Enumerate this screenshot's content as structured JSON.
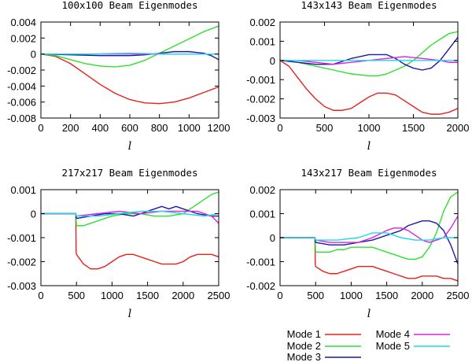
{
  "colors": {
    "mode1": "#e8201c",
    "mode2": "#2ee02e",
    "mode3": "#1a1aa8",
    "mode4": "#e020e0",
    "mode5": "#20d8e8"
  },
  "legend": [
    {
      "label": "Mode 1",
      "color": "#e8201c"
    },
    {
      "label": "Mode 2",
      "color": "#2ee02e"
    },
    {
      "label": "Mode 3",
      "color": "#1a1aa8"
    },
    {
      "label": "Mode 4",
      "color": "#e020e0"
    },
    {
      "label": "Mode 5",
      "color": "#20d8e8"
    }
  ],
  "chart_data": [
    {
      "type": "line",
      "title": "100x100 Beam Eigenmodes",
      "xlabel": "l",
      "ylabel": "",
      "xlim": [
        0,
        1200
      ],
      "ylim": [
        -0.008,
        0.004
      ],
      "xticks": [
        0,
        200,
        400,
        600,
        800,
        1000,
        1200
      ],
      "xticklabels": [
        "0",
        "200",
        "400",
        "600",
        "800",
        "1000",
        "1200"
      ],
      "yticks": [
        -0.008,
        -0.006,
        -0.004,
        -0.002,
        0,
        0.002,
        0.004
      ],
      "yticklabels": [
        "-0.008",
        "-0.006",
        "-0.004",
        "-0.002",
        "0",
        "0.002",
        "0.004"
      ],
      "series": [
        {
          "name": "Mode 1",
          "color": "#e8201c",
          "x": [
            0,
            100,
            200,
            300,
            400,
            500,
            600,
            700,
            800,
            900,
            1000,
            1100,
            1200
          ],
          "y": [
            0,
            -0.0003,
            -0.0012,
            -0.0025,
            -0.0038,
            -0.0049,
            -0.0057,
            -0.0061,
            -0.0062,
            -0.006,
            -0.0055,
            -0.0048,
            -0.0041
          ]
        },
        {
          "name": "Mode 2",
          "color": "#2ee02e",
          "x": [
            0,
            100,
            200,
            300,
            400,
            500,
            600,
            700,
            800,
            900,
            1000,
            1100,
            1200
          ],
          "y": [
            0,
            -0.0002,
            -0.0007,
            -0.0012,
            -0.0015,
            -0.0016,
            -0.0014,
            -0.0008,
            0.0001,
            0.001,
            0.0019,
            0.0028,
            0.0035
          ]
        },
        {
          "name": "Mode 3",
          "color": "#1a1aa8",
          "x": [
            0,
            200,
            400,
            600,
            700,
            800,
            900,
            1000,
            1100,
            1150,
            1200
          ],
          "y": [
            0,
            -0.0001,
            -0.0002,
            -0.0002,
            -0.0001,
            0.0001,
            0.0003,
            0.0003,
            0.0001,
            -0.0002,
            -0.0007
          ]
        },
        {
          "name": "Mode 4",
          "color": "#e020e0",
          "x": [
            0,
            300,
            600,
            900,
            1200
          ],
          "y": [
            0,
            0,
            0,
            0,
            0
          ]
        },
        {
          "name": "Mode 5",
          "color": "#20d8e8",
          "x": [
            0,
            300,
            600,
            900,
            1200
          ],
          "y": [
            0,
            0,
            0.0001,
            0,
            0
          ]
        }
      ]
    },
    {
      "type": "line",
      "title": "143x143 Beam Eigenmodes",
      "xlabel": "l",
      "ylabel": "",
      "xlim": [
        0,
        2000
      ],
      "ylim": [
        -0.003,
        0.002
      ],
      "xticks": [
        0,
        500,
        1000,
        1500,
        2000
      ],
      "xticklabels": [
        "0",
        "500",
        "1000",
        "1500",
        "2000"
      ],
      "yticks": [
        -0.003,
        -0.002,
        -0.001,
        0,
        0.001,
        0.002
      ],
      "yticklabels": [
        "-0.003",
        "-0.002",
        "-0.001",
        "0",
        "0.001",
        "0.002"
      ],
      "series": [
        {
          "name": "Mode 1",
          "color": "#e8201c",
          "x": [
            0,
            100,
            200,
            300,
            400,
            500,
            600,
            700,
            800,
            900,
            1000,
            1100,
            1200,
            1300,
            1400,
            1500,
            1600,
            1700,
            1800,
            1900,
            2000
          ],
          "y": [
            0,
            -0.0003,
            -0.0009,
            -0.0015,
            -0.002,
            -0.0024,
            -0.0026,
            -0.0026,
            -0.0025,
            -0.0022,
            -0.0019,
            -0.0017,
            -0.0017,
            -0.0018,
            -0.0021,
            -0.0024,
            -0.0027,
            -0.0028,
            -0.0028,
            -0.0027,
            -0.0025
          ]
        },
        {
          "name": "Mode 2",
          "color": "#2ee02e",
          "x": [
            0,
            200,
            400,
            600,
            800,
            1000,
            1100,
            1200,
            1300,
            1400,
            1500,
            1600,
            1700,
            1800,
            1900,
            2000
          ],
          "y": [
            0,
            -0.0001,
            -0.0003,
            -0.0005,
            -0.0007,
            -0.0008,
            -0.0008,
            -0.0007,
            -0.0005,
            -0.0003,
            0,
            0.0004,
            0.0008,
            0.0011,
            0.0014,
            0.0015
          ]
        },
        {
          "name": "Mode 3",
          "color": "#1a1aa8",
          "x": [
            0,
            200,
            400,
            600,
            800,
            900,
            1000,
            1100,
            1200,
            1300,
            1400,
            1500,
            1600,
            1700,
            1800,
            1900,
            2000
          ],
          "y": [
            0,
            -0.0001,
            -0.0002,
            -0.0002,
            0.0001,
            0.0002,
            0.0003,
            0.0003,
            0.0003,
            0.0001,
            -0.0002,
            -0.0004,
            -0.0005,
            -0.0004,
            0,
            0.0006,
            0.0012
          ]
        },
        {
          "name": "Mode 4",
          "color": "#e020e0",
          "x": [
            0,
            200,
            400,
            600,
            800,
            1000,
            1200,
            1400,
            1600,
            1800,
            1900,
            2000
          ],
          "y": [
            0,
            0,
            -0.0001,
            -0.0002,
            -0.0001,
            0,
            0.0001,
            0.0002,
            0.0001,
            0,
            -0.0001,
            -0.0001
          ]
        },
        {
          "name": "Mode 5",
          "color": "#20d8e8",
          "x": [
            0,
            400,
            800,
            1200,
            1600,
            2000
          ],
          "y": [
            0,
            0,
            0,
            0,
            0,
            0
          ]
        }
      ]
    },
    {
      "type": "line",
      "title": "217x217 Beam Eigenmodes",
      "xlabel": "l",
      "ylabel": "",
      "xlim": [
        0,
        2500
      ],
      "ylim": [
        -0.003,
        0.001
      ],
      "xticks": [
        0,
        500,
        1000,
        1500,
        2000,
        2500
      ],
      "xticklabels": [
        "0",
        "500",
        "1000",
        "1500",
        "2000",
        "2500"
      ],
      "yticks": [
        -0.003,
        -0.002,
        -0.001,
        0,
        0.001
      ],
      "yticklabels": [
        "-0.003",
        "-0.002",
        "-0.001",
        "0",
        "0.001"
      ],
      "series": [
        {
          "name": "Mode 1",
          "color": "#e8201c",
          "x": [
            0,
            490,
            495,
            500,
            550,
            600,
            700,
            800,
            900,
            1000,
            1100,
            1200,
            1300,
            1400,
            1500,
            1600,
            1700,
            1800,
            1900,
            2000,
            2100,
            2200,
            2300,
            2400,
            2500
          ],
          "y": [
            0,
            0,
            -0.0016,
            -0.0017,
            -0.0019,
            -0.0021,
            -0.0023,
            -0.0023,
            -0.0022,
            -0.002,
            -0.0018,
            -0.0017,
            -0.0017,
            -0.0018,
            -0.0019,
            -0.002,
            -0.0021,
            -0.0021,
            -0.0021,
            -0.002,
            -0.0018,
            -0.0017,
            -0.0017,
            -0.0017,
            -0.0018
          ]
        },
        {
          "name": "Mode 2",
          "color": "#2ee02e",
          "x": [
            0,
            490,
            500,
            600,
            700,
            800,
            900,
            1000,
            1200,
            1400,
            1600,
            1800,
            2000,
            2100,
            2200,
            2300,
            2400,
            2500
          ],
          "y": [
            0,
            0,
            -0.0005,
            -0.0005,
            -0.0004,
            -0.0003,
            -0.0002,
            -0.0001,
            0,
            0,
            -0.0001,
            -0.0001,
            0,
            0.0002,
            0.0004,
            0.0006,
            0.0008,
            0.0009
          ]
        },
        {
          "name": "Mode 3",
          "color": "#1a1aa8",
          "x": [
            0,
            490,
            500,
            700,
            900,
            1100,
            1300,
            1500,
            1700,
            1800,
            1900,
            2000,
            2200,
            2400,
            2500
          ],
          "y": [
            0,
            0,
            -0.0002,
            -0.0001,
            0,
            0,
            -0.0001,
            0.0001,
            0.0003,
            0.0002,
            0.0003,
            0.0002,
            0,
            -0.0001,
            -0.0001
          ]
        },
        {
          "name": "Mode 4",
          "color": "#e020e0",
          "x": [
            0,
            490,
            500,
            800,
            1100,
            1400,
            1700,
            2000,
            2200,
            2300,
            2400,
            2500
          ],
          "y": [
            0,
            0,
            -0.0001,
            0,
            0.0001,
            0,
            0.0001,
            0.0001,
            0.0001,
            0,
            -0.0001,
            -0.0004
          ]
        },
        {
          "name": "Mode 5",
          "color": "#20d8e8",
          "x": [
            0,
            490,
            500,
            800,
            1100,
            1400,
            1700,
            2000,
            2300,
            2500
          ],
          "y": [
            0,
            0,
            -0.0001,
            -0.0001,
            0,
            0.0001,
            0.0001,
            0,
            -0.0001,
            0
          ]
        }
      ]
    },
    {
      "type": "line",
      "title": "143x217 Beam Eigenmodes",
      "xlabel": "l",
      "ylabel": "",
      "xlim": [
        0,
        2500
      ],
      "ylim": [
        -0.002,
        0.002
      ],
      "xticks": [
        0,
        500,
        1000,
        1500,
        2000,
        2500
      ],
      "xticklabels": [
        "0",
        "500",
        "1000",
        "1500",
        "2000",
        "2500"
      ],
      "yticks": [
        -0.002,
        -0.001,
        0,
        0.001,
        0.002
      ],
      "yticklabels": [
        "-0.002",
        "-0.001",
        "0",
        "0.001",
        "0.002"
      ],
      "series": [
        {
          "name": "Mode 1",
          "color": "#e8201c",
          "x": [
            0,
            490,
            495,
            500,
            600,
            700,
            800,
            900,
            1000,
            1100,
            1200,
            1300,
            1400,
            1500,
            1600,
            1700,
            1800,
            1900,
            2000,
            2100,
            2200,
            2300,
            2400,
            2500
          ],
          "y": [
            0,
            0,
            -0.0011,
            -0.0012,
            -0.0014,
            -0.0015,
            -0.0015,
            -0.0014,
            -0.0013,
            -0.0012,
            -0.0012,
            -0.0012,
            -0.0013,
            -0.0014,
            -0.0015,
            -0.0016,
            -0.0017,
            -0.0017,
            -0.0016,
            -0.0016,
            -0.0016,
            -0.0017,
            -0.0017,
            -0.0018
          ]
        },
        {
          "name": "Mode 2",
          "color": "#2ee02e",
          "x": [
            0,
            490,
            500,
            600,
            700,
            800,
            900,
            1000,
            1100,
            1200,
            1300,
            1400,
            1500,
            1600,
            1700,
            1800,
            1900,
            2000,
            2100,
            2200,
            2300,
            2400,
            2500
          ],
          "y": [
            0,
            0,
            -0.0006,
            -0.0006,
            -0.0006,
            -0.0005,
            -0.0005,
            -0.0004,
            -0.0004,
            -0.0004,
            -0.0004,
            -0.0005,
            -0.0006,
            -0.0007,
            -0.0008,
            -0.0009,
            -0.0009,
            -0.0008,
            -0.0004,
            0.0002,
            0.0011,
            0.0017,
            0.0019
          ]
        },
        {
          "name": "Mode 3",
          "color": "#1a1aa8",
          "x": [
            0,
            490,
            500,
            700,
            900,
            1100,
            1300,
            1500,
            1600,
            1700,
            1800,
            1900,
            2000,
            2100,
            2200,
            2300,
            2400,
            2500
          ],
          "y": [
            0,
            0,
            -0.0002,
            -0.0003,
            -0.0003,
            -0.0002,
            -0.0001,
            0.0001,
            0.0002,
            0.0003,
            0.0005,
            0.0006,
            0.0007,
            0.0007,
            0.0006,
            0.0003,
            -0.0003,
            -0.0011
          ]
        },
        {
          "name": "Mode 4",
          "color": "#e020e0",
          "x": [
            0,
            490,
            500,
            700,
            900,
            1100,
            1300,
            1500,
            1600,
            1700,
            1800,
            1900,
            2000,
            2100,
            2200,
            2300,
            2400,
            2500
          ],
          "y": [
            0,
            0,
            -0.0001,
            -0.0002,
            -0.0002,
            -0.0002,
            0,
            0.0003,
            0.0004,
            0.0004,
            0.0003,
            0.0001,
            -0.0001,
            -0.0002,
            -0.0001,
            0,
            0.0004,
            0.0009
          ]
        },
        {
          "name": "Mode 5",
          "color": "#20d8e8",
          "x": [
            0,
            490,
            500,
            800,
            1100,
            1300,
            1500,
            1700,
            1900,
            2100,
            2300,
            2500
          ],
          "y": [
            0,
            0,
            -0.0001,
            -0.0001,
            0,
            0.0002,
            0.0002,
            0,
            -0.0001,
            -0.0001,
            0,
            0
          ]
        }
      ]
    }
  ]
}
